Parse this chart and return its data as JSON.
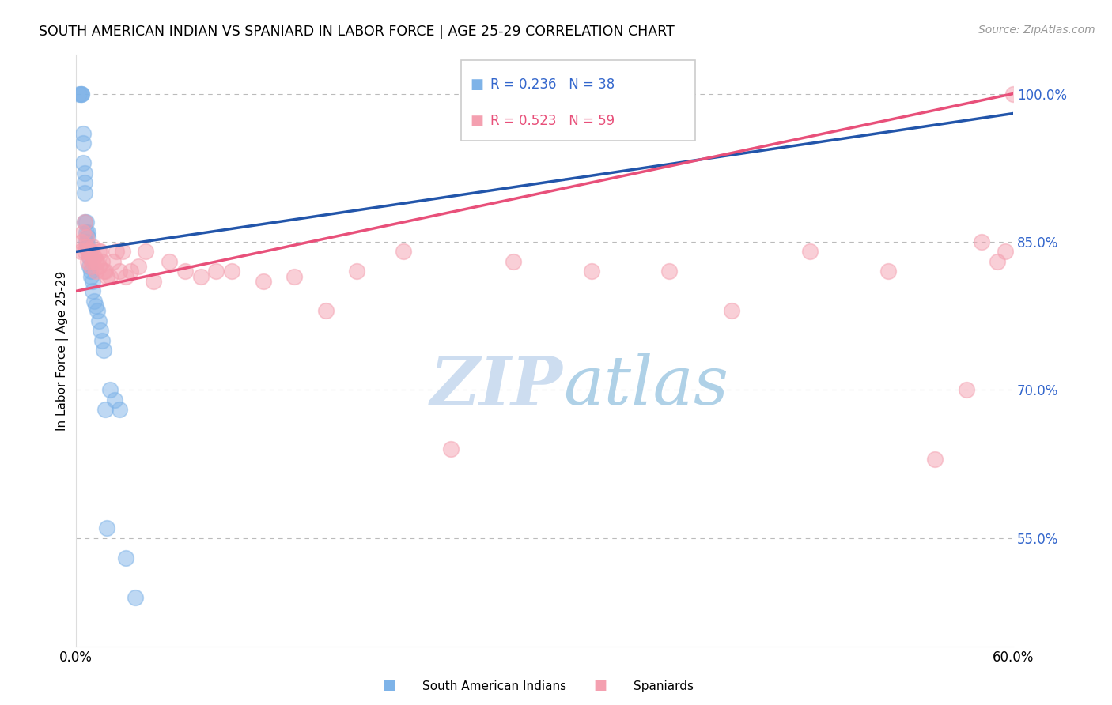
{
  "title": "SOUTH AMERICAN INDIAN VS SPANIARD IN LABOR FORCE | AGE 25-29 CORRELATION CHART",
  "source": "Source: ZipAtlas.com",
  "ylabel": "In Labor Force | Age 25-29",
  "xlim": [
    0.0,
    0.6
  ],
  "ylim": [
    0.44,
    1.04
  ],
  "xticks": [
    0.0,
    0.1,
    0.2,
    0.3,
    0.4,
    0.5,
    0.6
  ],
  "xticklabels": [
    "0.0%",
    "",
    "",
    "",
    "",
    "",
    "60.0%"
  ],
  "yticks_right": [
    0.55,
    0.7,
    0.85,
    1.0
  ],
  "yticklabels_right": [
    "55.0%",
    "70.0%",
    "85.0%",
    "100.0%"
  ],
  "legend_R1": "R = 0.236",
  "legend_N1": "N = 38",
  "legend_R2": "R = 0.523",
  "legend_N2": "N = 59",
  "legend_label1": "South American Indians",
  "legend_label2": "Spaniards",
  "color_blue": "#7EB3E8",
  "color_pink": "#F4A0B0",
  "line_blue": "#2255AA",
  "line_pink": "#E8507A",
  "watermark_zip": "ZIP",
  "watermark_atlas": "atlas",
  "blue_x": [
    0.002,
    0.003,
    0.004,
    0.004,
    0.005,
    0.005,
    0.005,
    0.006,
    0.006,
    0.006,
    0.006,
    0.007,
    0.007,
    0.007,
    0.008,
    0.008,
    0.008,
    0.009,
    0.009,
    0.009,
    0.01,
    0.01,
    0.011,
    0.011,
    0.012,
    0.013,
    0.014,
    0.015,
    0.016,
    0.017,
    0.018,
    0.019,
    0.02,
    0.022,
    0.025,
    0.028,
    0.032,
    0.038
  ],
  "blue_y": [
    1.0,
    1.0,
    1.0,
    1.0,
    0.96,
    0.95,
    0.93,
    0.92,
    0.91,
    0.9,
    0.87,
    0.87,
    0.86,
    0.85,
    0.86,
    0.855,
    0.845,
    0.84,
    0.835,
    0.825,
    0.82,
    0.815,
    0.81,
    0.8,
    0.79,
    0.785,
    0.78,
    0.77,
    0.76,
    0.75,
    0.74,
    0.68,
    0.56,
    0.7,
    0.69,
    0.68,
    0.53,
    0.49
  ],
  "pink_x": [
    0.003,
    0.004,
    0.005,
    0.006,
    0.006,
    0.007,
    0.007,
    0.008,
    0.008,
    0.009,
    0.009,
    0.01,
    0.01,
    0.011,
    0.011,
    0.012,
    0.013,
    0.013,
    0.014,
    0.015,
    0.015,
    0.016,
    0.017,
    0.018,
    0.019,
    0.02,
    0.022,
    0.024,
    0.026,
    0.028,
    0.03,
    0.032,
    0.035,
    0.04,
    0.045,
    0.05,
    0.06,
    0.07,
    0.08,
    0.09,
    0.1,
    0.12,
    0.14,
    0.16,
    0.18,
    0.21,
    0.24,
    0.28,
    0.33,
    0.38,
    0.42,
    0.47,
    0.52,
    0.55,
    0.57,
    0.58,
    0.59,
    0.595,
    0.6
  ],
  "pink_y": [
    0.84,
    0.85,
    0.86,
    0.87,
    0.84,
    0.855,
    0.845,
    0.84,
    0.83,
    0.84,
    0.835,
    0.84,
    0.825,
    0.845,
    0.83,
    0.835,
    0.83,
    0.82,
    0.83,
    0.84,
    0.825,
    0.84,
    0.83,
    0.82,
    0.82,
    0.815,
    0.815,
    0.83,
    0.84,
    0.82,
    0.84,
    0.815,
    0.82,
    0.825,
    0.84,
    0.81,
    0.83,
    0.82,
    0.815,
    0.82,
    0.82,
    0.81,
    0.815,
    0.78,
    0.82,
    0.84,
    0.64,
    0.83,
    0.82,
    0.82,
    0.78,
    0.84,
    0.82,
    0.63,
    0.7,
    0.85,
    0.83,
    0.84,
    1.0
  ],
  "blue_trend_x": [
    0.0,
    0.6
  ],
  "blue_trend_y": [
    0.84,
    0.98
  ],
  "pink_trend_x": [
    0.0,
    0.6
  ],
  "pink_trend_y": [
    0.8,
    1.0
  ]
}
